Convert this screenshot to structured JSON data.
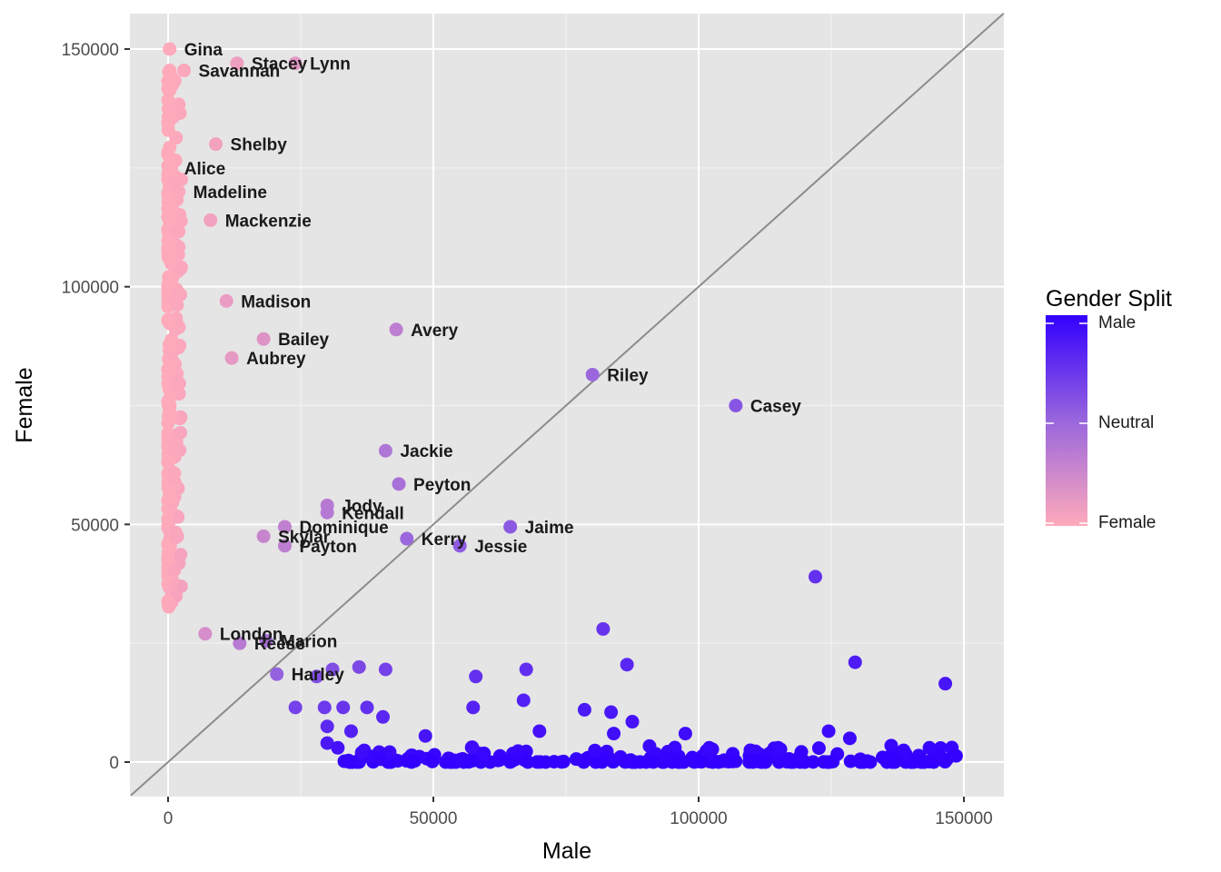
{
  "chart_data": {
    "type": "scatter",
    "xlabel": "Male",
    "ylabel": "Female",
    "xlim": [
      -7000,
      158000
    ],
    "ylim": [
      -7000,
      158000
    ],
    "x_ticks": [
      0,
      50000,
      100000,
      150000
    ],
    "y_ticks": [
      0,
      50000,
      100000,
      150000
    ],
    "x_tick_labels": [
      "0",
      "50000",
      "100000",
      "150000"
    ],
    "y_tick_labels": [
      "0",
      "50000",
      "100000",
      "150000"
    ],
    "grid": true,
    "panel_background": "#e5e5e5",
    "reference_line": "y = x",
    "legend": {
      "title": "Gender Split",
      "placement": "right",
      "labels": [
        "Male",
        "Neutral",
        "Female"
      ],
      "colors": {
        "male": "#3300ff",
        "neutral": "#9966dd",
        "female": "#ffaabb"
      }
    },
    "labeled_points": [
      {
        "name": "Gina",
        "x": 300,
        "y": 150000
      },
      {
        "name": "Stacey",
        "x": 13000,
        "y": 147000
      },
      {
        "name": "Lynn",
        "x": 24000,
        "y": 147000
      },
      {
        "name": "Savannah",
        "x": 3000,
        "y": 145500
      },
      {
        "name": "Shelby",
        "x": 9000,
        "y": 130000
      },
      {
        "name": "Alice",
        "x": 300,
        "y": 125000
      },
      {
        "name": "Madeline",
        "x": 2000,
        "y": 120000
      },
      {
        "name": "Mackenzie",
        "x": 8000,
        "y": 114000
      },
      {
        "name": "Madison",
        "x": 11000,
        "y": 97000
      },
      {
        "name": "Bailey",
        "x": 18000,
        "y": 89000
      },
      {
        "name": "Aubrey",
        "x": 12000,
        "y": 85000
      },
      {
        "name": "Avery",
        "x": 43000,
        "y": 91000
      },
      {
        "name": "Riley",
        "x": 80000,
        "y": 81500
      },
      {
        "name": "Casey",
        "x": 107000,
        "y": 75000
      },
      {
        "name": "Jackie",
        "x": 41000,
        "y": 65500
      },
      {
        "name": "Peyton",
        "x": 43500,
        "y": 58500
      },
      {
        "name": "Jody",
        "x": 30000,
        "y": 54000
      },
      {
        "name": "Kendall",
        "x": 30000,
        "y": 52500
      },
      {
        "name": "Dominique",
        "x": 22000,
        "y": 49500
      },
      {
        "name": "Jaime",
        "x": 64500,
        "y": 49500
      },
      {
        "name": "Kerry",
        "x": 45000,
        "y": 47000
      },
      {
        "name": "Jessie",
        "x": 55000,
        "y": 45500
      },
      {
        "name": "Payton",
        "x": 22000,
        "y": 45500
      },
      {
        "name": "Skylar",
        "x": 18000,
        "y": 47500
      },
      {
        "name": "London",
        "x": 7000,
        "y": 27000
      },
      {
        "name": "Reese",
        "x": 13500,
        "y": 25000
      },
      {
        "name": "Marion",
        "x": 18500,
        "y": 25500
      },
      {
        "name": "Harley",
        "x": 20500,
        "y": 18500
      }
    ]
  }
}
